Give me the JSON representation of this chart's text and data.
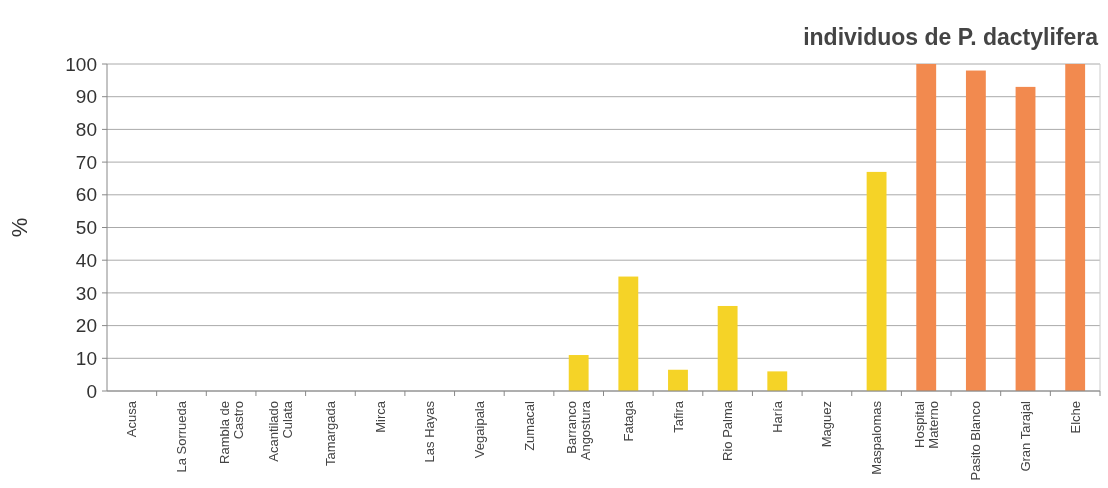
{
  "chart_data": {
    "type": "bar",
    "title": "individuos de P. dactylifera",
    "ylabel": "%",
    "categories": [
      "Acusa",
      "La Sorrueda",
      "Rambla de\nCastro",
      "Acantilado\nCulata",
      "Tamargada",
      "Mirca",
      "Las Hayas",
      "Vegaipala",
      "Zumacal",
      "Barranco\nAngostura",
      "Fataga",
      "Tafira",
      "Rio Palma",
      "Haría",
      "Maguez",
      "Maspalomas",
      "Hospital\nMaterno",
      "Pasito Blanco",
      "Gran Tarajal",
      "Elche"
    ],
    "values": [
      0,
      0,
      0,
      0,
      0,
      0,
      0,
      0,
      0,
      11,
      35,
      6.5,
      26,
      6,
      0,
      67,
      100,
      98,
      93,
      100
    ],
    "colors": [
      "#f5d327",
      "#f5d327",
      "#f5d327",
      "#f5d327",
      "#f5d327",
      "#f5d327",
      "#f5d327",
      "#f5d327",
      "#f5d327",
      "#f5d327",
      "#f5d327",
      "#f5d327",
      "#f5d327",
      "#f5d327",
      "#f5d327",
      "#f5d327",
      "#f28a4f",
      "#f28a4f",
      "#f28a4f",
      "#f28a4f"
    ],
    "ylim": [
      0,
      100
    ],
    "yticks": [
      0,
      10,
      20,
      30,
      40,
      50,
      60,
      70,
      80,
      90,
      100
    ],
    "grid": "y"
  }
}
